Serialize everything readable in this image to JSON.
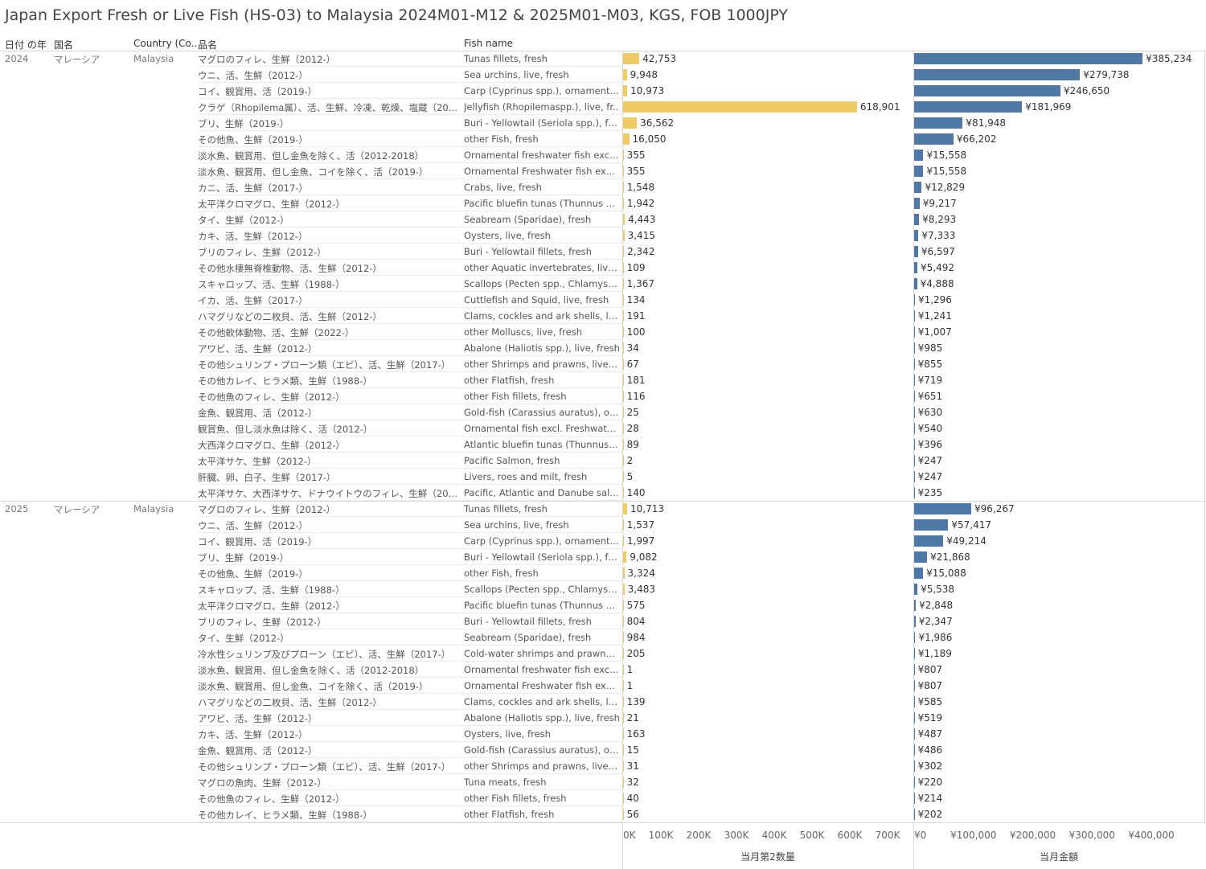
{
  "title": "Japan Export Fresh or Live Fish (HS-03) to Malaysia 2024M01-M12 & 2025M01-M03, KGS, FOB 1000JPY",
  "headers": {
    "year": "日付 の年",
    "country_jp": "国名",
    "country_en": "Country (Co..",
    "item_jp": "品名",
    "item_en": "Fish name"
  },
  "axes": {
    "quantity": {
      "title": "当月第2数量",
      "ticks": [
        "0K",
        "100K",
        "200K",
        "300K",
        "400K",
        "500K",
        "600K",
        "700K"
      ],
      "max": 700000
    },
    "value": {
      "title": "当月金額",
      "ticks": [
        "¥0",
        "¥100,000",
        "¥200,000",
        "¥300,000",
        "¥400,000"
      ],
      "max": 400000
    }
  },
  "colors": {
    "quantity_bar": "#f1cb63",
    "value_bar": "#4e79a7"
  },
  "groups": [
    {
      "year": "2024",
      "country_jp": "マレーシア",
      "country_en": "Malaysia"
    },
    {
      "year": "2025",
      "country_jp": "マレーシア",
      "country_en": "Malaysia"
    }
  ],
  "chart_data": {
    "type": "bar",
    "title": "Japan Export Fresh or Live Fish (HS-03) to Malaysia 2024M01-M12 & 2025M01-M03, KGS, FOB 1000JPY",
    "series": [
      {
        "name": "当月第2数量",
        "unit": "KGS"
      },
      {
        "name": "当月金額",
        "unit": "1000JPY"
      }
    ],
    "rows": [
      {
        "year": "2024",
        "jp": "マグロのフィレ、生鮮（2012-）",
        "en": "Tunas fillets, fresh",
        "qty": 42753,
        "qty_label": "42,753",
        "value": 385234,
        "value_label": "¥385,234"
      },
      {
        "year": "2024",
        "jp": "ウニ、活、生鮮（2012-）",
        "en": "Sea urchins, live, fresh",
        "qty": 9948,
        "qty_label": "9,948",
        "value": 279738,
        "value_label": "¥279,738"
      },
      {
        "year": "2024",
        "jp": "コイ、観賞用、活（2019-）",
        "en": "Carp (Cyprinus spp.), ornamental ..",
        "qty": 10973,
        "qty_label": "10,973",
        "value": 246650,
        "value_label": "¥246,650"
      },
      {
        "year": "2024",
        "jp": "クラゲ（Rhopilema属）、活、生鮮、冷凍、乾燥、塩蔵（2012-..",
        "en": "Jellyfish (Rhopilemaspp.), live, fr..",
        "qty": 618901,
        "qty_label": "618,901",
        "value": 181969,
        "value_label": "¥181,969"
      },
      {
        "year": "2024",
        "jp": "ブリ、生鮮（2019-）",
        "en": "Buri - Yellowtail (Seriola spp.), fre..",
        "qty": 36562,
        "qty_label": "36,562",
        "value": 81948,
        "value_label": "¥81,948"
      },
      {
        "year": "2024",
        "jp": "その他魚、生鮮（2019-）",
        "en": "other Fish, fresh",
        "qty": 16050,
        "qty_label": "16,050",
        "value": 66202,
        "value_label": "¥66,202"
      },
      {
        "year": "2024",
        "jp": "淡水魚、観賞用、但し金魚を除く、活（2012-2018）",
        "en": "Ornamental freshwater fish excl. ..",
        "qty": 355,
        "qty_label": "355",
        "value": 15558,
        "value_label": "¥15,558"
      },
      {
        "year": "2024",
        "jp": "淡水魚、観賞用、但し金魚、コイを除く、活（2019-）",
        "en": "Ornamental Freshwater fish excl. ..",
        "qty": 355,
        "qty_label": "355",
        "value": 15558,
        "value_label": "¥15,558"
      },
      {
        "year": "2024",
        "jp": "カニ、活、生鮮（2017-）",
        "en": "Crabs, live, fresh",
        "qty": 1548,
        "qty_label": "1,548",
        "value": 12829,
        "value_label": "¥12,829"
      },
      {
        "year": "2024",
        "jp": "太平洋クロマグロ、生鮮（2012-）",
        "en": "Pacific bluefin tunas (Thunnus ori..",
        "qty": 1942,
        "qty_label": "1,942",
        "value": 9217,
        "value_label": "¥9,217"
      },
      {
        "year": "2024",
        "jp": "タイ、生鮮（2012-）",
        "en": "Seabream (Sparidae), fresh",
        "qty": 4443,
        "qty_label": "4,443",
        "value": 8293,
        "value_label": "¥8,293"
      },
      {
        "year": "2024",
        "jp": "カキ、活、生鮮（2012-）",
        "en": "Oysters, live, fresh",
        "qty": 3415,
        "qty_label": "3,415",
        "value": 7333,
        "value_label": "¥7,333"
      },
      {
        "year": "2024",
        "jp": "ブリのフィレ、生鮮（2012-）",
        "en": "Buri - Yellowtail fillets, fresh",
        "qty": 2342,
        "qty_label": "2,342",
        "value": 6597,
        "value_label": "¥6,597"
      },
      {
        "year": "2024",
        "jp": "その他水棲無脊椎動物、活、生鮮（2012-）",
        "en": "other Aquatic invertebrates, live, ..",
        "qty": 109,
        "qty_label": "109",
        "value": 5492,
        "value_label": "¥5,492"
      },
      {
        "year": "2024",
        "jp": "スキャロップ、活、生鮮（1988-）",
        "en": "Scallops (Pecten spp., Chlamys sp..",
        "qty": 1367,
        "qty_label": "1,367",
        "value": 4888,
        "value_label": "¥4,888"
      },
      {
        "year": "2024",
        "jp": "イカ、活、生鮮（2017-）",
        "en": "Cuttlefish and Squid, live, fresh",
        "qty": 134,
        "qty_label": "134",
        "value": 1296,
        "value_label": "¥1,296"
      },
      {
        "year": "2024",
        "jp": "ハマグリなどの二枚貝、活、生鮮（2012-）",
        "en": "Clams, cockles and ark shells, live..",
        "qty": 191,
        "qty_label": "191",
        "value": 1241,
        "value_label": "¥1,241"
      },
      {
        "year": "2024",
        "jp": "その他軟体動物、活、生鮮（2022-）",
        "en": "other Molluscs, live, fresh",
        "qty": 100,
        "qty_label": "100",
        "value": 1007,
        "value_label": "¥1,007"
      },
      {
        "year": "2024",
        "jp": "アワビ、活、生鮮（2012-）",
        "en": "Abalone (Haliotis spp.), live, fresh",
        "qty": 34,
        "qty_label": "34",
        "value": 985,
        "value_label": "¥985"
      },
      {
        "year": "2024",
        "jp": "その他シュリンプ・プローン類（エビ）、活、生鮮（2017-）",
        "en": "other Shrimps and prawns, live, f..",
        "qty": 67,
        "qty_label": "67",
        "value": 855,
        "value_label": "¥855"
      },
      {
        "year": "2024",
        "jp": "その他カレイ、ヒラメ類、生鮮（1988-）",
        "en": "other Flatfish, fresh",
        "qty": 181,
        "qty_label": "181",
        "value": 719,
        "value_label": "¥719"
      },
      {
        "year": "2024",
        "jp": "その他魚のフィレ、生鮮（2012-）",
        "en": "other Fish fillets, fresh",
        "qty": 116,
        "qty_label": "116",
        "value": 651,
        "value_label": "¥651"
      },
      {
        "year": "2024",
        "jp": "金魚、観賞用、活（2012-）",
        "en": "Gold-fish (Carassius auratus), orn..",
        "qty": 25,
        "qty_label": "25",
        "value": 630,
        "value_label": "¥630"
      },
      {
        "year": "2024",
        "jp": "観賞魚、但し淡水魚は除く、活（2012-）",
        "en": "Ornamental fish excl. Freshwater ..",
        "qty": 28,
        "qty_label": "28",
        "value": 540,
        "value_label": "¥540"
      },
      {
        "year": "2024",
        "jp": "大西洋クロマグロ、生鮮（2012-）",
        "en": "Atlantic bluefin tunas (Thunnus t..",
        "qty": 89,
        "qty_label": "89",
        "value": 396,
        "value_label": "¥396"
      },
      {
        "year": "2024",
        "jp": "太平洋サケ、生鮮（2012-）",
        "en": "Pacific Salmon, fresh",
        "qty": 2,
        "qty_label": "2",
        "value": 247,
        "value_label": "¥247"
      },
      {
        "year": "2024",
        "jp": "肝臓、卵、白子、生鮮（2017-）",
        "en": "Livers, roes and milt, fresh",
        "qty": 5,
        "qty_label": "5",
        "value": 247,
        "value_label": "¥247"
      },
      {
        "year": "2024",
        "jp": "太平洋サケ、大西洋サケ、ドナウイトウのフィレ、生鮮（2012-）",
        "en": "Pacific, Atlantic and Danube salm..",
        "qty": 140,
        "qty_label": "140",
        "value": 235,
        "value_label": "¥235"
      },
      {
        "year": "2025",
        "jp": "マグロのフィレ、生鮮（2012-）",
        "en": "Tunas fillets, fresh",
        "qty": 10713,
        "qty_label": "10,713",
        "value": 96267,
        "value_label": "¥96,267"
      },
      {
        "year": "2025",
        "jp": "ウニ、活、生鮮（2012-）",
        "en": "Sea urchins, live, fresh",
        "qty": 1537,
        "qty_label": "1,537",
        "value": 57417,
        "value_label": "¥57,417"
      },
      {
        "year": "2025",
        "jp": "コイ、観賞用、活（2019-）",
        "en": "Carp (Cyprinus spp.), ornamental ..",
        "qty": 1997,
        "qty_label": "1,997",
        "value": 49214,
        "value_label": "¥49,214"
      },
      {
        "year": "2025",
        "jp": "ブリ、生鮮（2019-）",
        "en": "Buri - Yellowtail (Seriola spp.), fre..",
        "qty": 9082,
        "qty_label": "9,082",
        "value": 21868,
        "value_label": "¥21,868"
      },
      {
        "year": "2025",
        "jp": "その他魚、生鮮（2019-）",
        "en": "other Fish, fresh",
        "qty": 3324,
        "qty_label": "3,324",
        "value": 15088,
        "value_label": "¥15,088"
      },
      {
        "year": "2025",
        "jp": "スキャロップ、活、生鮮（1988-）",
        "en": "Scallops (Pecten spp., Chlamys sp..",
        "qty": 3483,
        "qty_label": "3,483",
        "value": 5538,
        "value_label": "¥5,538"
      },
      {
        "year": "2025",
        "jp": "太平洋クロマグロ、生鮮（2012-）",
        "en": "Pacific bluefin tunas (Thunnus ori..",
        "qty": 575,
        "qty_label": "575",
        "value": 2848,
        "value_label": "¥2,848"
      },
      {
        "year": "2025",
        "jp": "ブリのフィレ、生鮮（2012-）",
        "en": "Buri - Yellowtail fillets, fresh",
        "qty": 804,
        "qty_label": "804",
        "value": 2347,
        "value_label": "¥2,347"
      },
      {
        "year": "2025",
        "jp": "タイ、生鮮（2012-）",
        "en": "Seabream (Sparidae), fresh",
        "qty": 984,
        "qty_label": "984",
        "value": 1986,
        "value_label": "¥1,986"
      },
      {
        "year": "2025",
        "jp": "冷水性シュリンプ及びプローン（エビ）、活、生鮮（2017-）",
        "en": "Cold-water shrimps and prawns (..",
        "qty": 205,
        "qty_label": "205",
        "value": 1189,
        "value_label": "¥1,189"
      },
      {
        "year": "2025",
        "jp": "淡水魚、観賞用、但し金魚を除く、活（2012-2018）",
        "en": "Ornamental freshwater fish excl. ..",
        "qty": 1,
        "qty_label": "1",
        "value": 807,
        "value_label": "¥807"
      },
      {
        "year": "2025",
        "jp": "淡水魚、観賞用、但し金魚、コイを除く、活（2019-）",
        "en": "Ornamental Freshwater fish excl. ..",
        "qty": 1,
        "qty_label": "1",
        "value": 807,
        "value_label": "¥807"
      },
      {
        "year": "2025",
        "jp": "ハマグリなどの二枚貝、活、生鮮（2012-）",
        "en": "Clams, cockles and ark shells, live..",
        "qty": 139,
        "qty_label": "139",
        "value": 585,
        "value_label": "¥585"
      },
      {
        "year": "2025",
        "jp": "アワビ、活、生鮮（2012-）",
        "en": "Abalone (Haliotis spp.), live, fresh",
        "qty": 21,
        "qty_label": "21",
        "value": 519,
        "value_label": "¥519"
      },
      {
        "year": "2025",
        "jp": "カキ、活、生鮮（2012-）",
        "en": "Oysters, live, fresh",
        "qty": 163,
        "qty_label": "163",
        "value": 487,
        "value_label": "¥487"
      },
      {
        "year": "2025",
        "jp": "金魚、観賞用、活（2012-）",
        "en": "Gold-fish (Carassius auratus), orn..",
        "qty": 15,
        "qty_label": "15",
        "value": 486,
        "value_label": "¥486"
      },
      {
        "year": "2025",
        "jp": "その他シュリンプ・プローン類（エビ）、活、生鮮（2017-）",
        "en": "other Shrimps and prawns, live, f..",
        "qty": 31,
        "qty_label": "31",
        "value": 302,
        "value_label": "¥302"
      },
      {
        "year": "2025",
        "jp": "マグロの魚肉、生鮮（2012-）",
        "en": "Tuna meats, fresh",
        "qty": 32,
        "qty_label": "32",
        "value": 220,
        "value_label": "¥220"
      },
      {
        "year": "2025",
        "jp": "その他魚のフィレ、生鮮（2012-）",
        "en": "other Fish fillets, fresh",
        "qty": 40,
        "qty_label": "40",
        "value": 214,
        "value_label": "¥214"
      },
      {
        "year": "2025",
        "jp": "その他カレイ、ヒラメ類、生鮮（1988-）",
        "en": "other Flatfish, fresh",
        "qty": 56,
        "qty_label": "56",
        "value": 202,
        "value_label": "¥202"
      }
    ]
  }
}
